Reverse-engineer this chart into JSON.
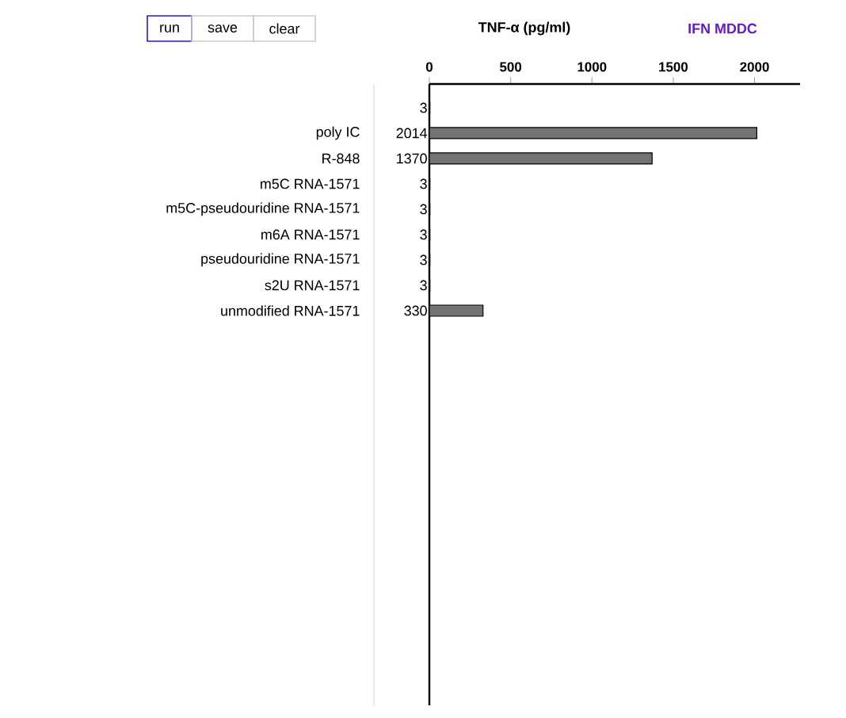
{
  "chart_data": {
    "type": "bar",
    "orientation": "horizontal",
    "title": "TNF-α (pg/ml)",
    "subtitle": "IFN MDDC",
    "categories": [
      null,
      "poly IC",
      "R-848",
      "m5C RNA-1571",
      "m5C-pseudouridine RNA-1571",
      "m6A RNA-1571",
      "pseudouridine RNA-1571",
      "s2U RNA-1571",
      "unmodified RNA-1571"
    ],
    "values": [
      3,
      2014,
      1370,
      3,
      3,
      3,
      3,
      3,
      330
    ],
    "color": "#737373",
    "xlim": [
      0,
      2280
    ],
    "xticks": [
      0,
      500,
      1000,
      1500,
      2000
    ],
    "data_labels": true,
    "grid": false,
    "annotations": [
      "run",
      "save",
      "clear"
    ]
  }
}
